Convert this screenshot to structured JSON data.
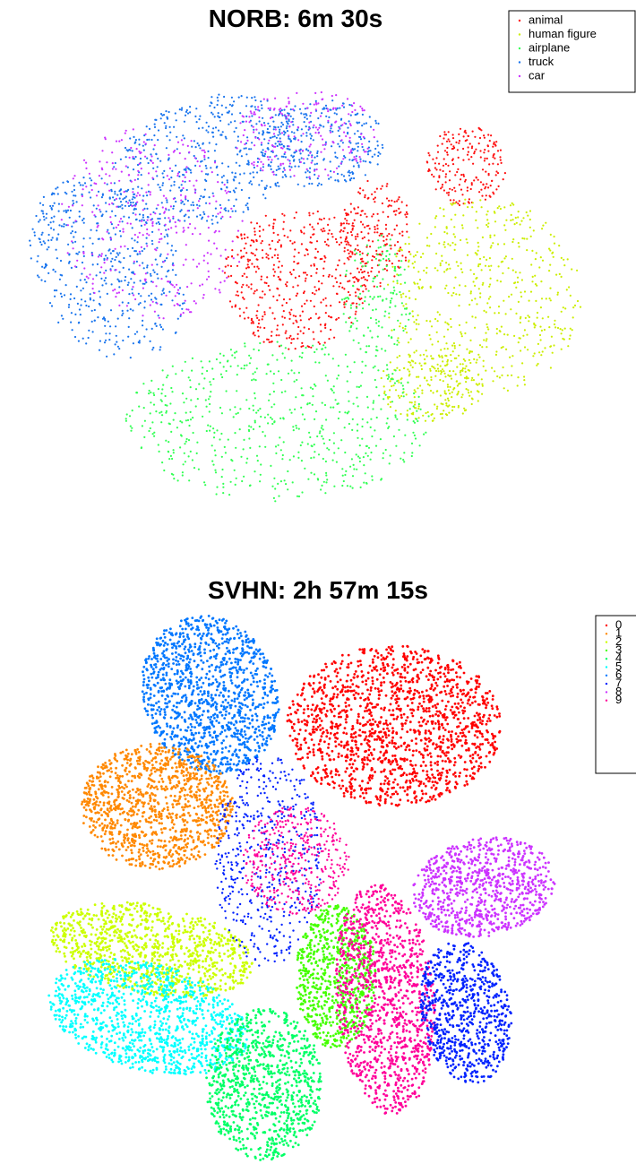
{
  "chart_data": [
    {
      "type": "scatter",
      "title": "NORB: 6m 30s",
      "series": [
        {
          "name": "animal",
          "color": "#ff1010"
        },
        {
          "name": "human figure",
          "color": "#ccee00"
        },
        {
          "name": "airplane",
          "color": "#33ff55"
        },
        {
          "name": "truck",
          "color": "#1a75ee"
        },
        {
          "name": "car",
          "color": "#cc33ff"
        }
      ],
      "legend": "upper right"
    },
    {
      "type": "scatter",
      "title": "SVHN: 2h 57m 15s",
      "series": [
        {
          "name": "0",
          "color": "#ff0000"
        },
        {
          "name": "1",
          "color": "#ff8800"
        },
        {
          "name": "2",
          "color": "#ccff00"
        },
        {
          "name": "3",
          "color": "#44ff00"
        },
        {
          "name": "4",
          "color": "#00ff66"
        },
        {
          "name": "5",
          "color": "#00ffff"
        },
        {
          "name": "6",
          "color": "#0077ff"
        },
        {
          "name": "7",
          "color": "#0022ff"
        },
        {
          "name": "8",
          "color": "#cc33ff"
        },
        {
          "name": "9",
          "color": "#ff0099"
        }
      ],
      "legend": "upper right"
    }
  ]
}
